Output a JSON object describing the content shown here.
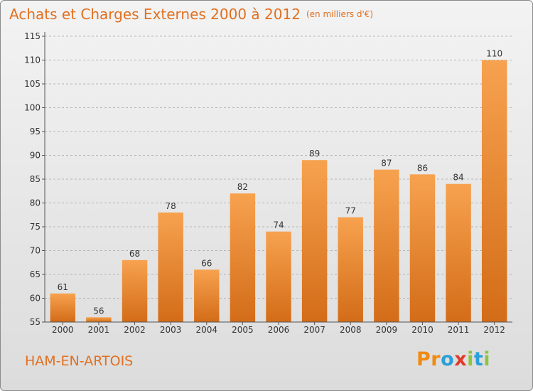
{
  "header": {
    "title": "Achats et Charges Externes 2000 à 2012",
    "unit": "(en milliers d'€)"
  },
  "footer": {
    "commune": "HAM-EN-ARTOIS",
    "logo": {
      "letters": [
        "P",
        "r",
        "o",
        "x",
        "i",
        "t",
        "i"
      ],
      "colors": [
        "#f08a10",
        "#f08a10",
        "#2a9fd8",
        "#e03a2a",
        "#8cc63e",
        "#2a9fd8",
        "#8cc63e"
      ]
    }
  },
  "colors": {
    "accent": "#e07020",
    "bar_light": "#f7a24f",
    "bar_dark": "#d36c18",
    "grid": "#b5b5b5"
  },
  "chart_data": {
    "type": "bar",
    "title": "Achats et Charges Externes 2000 à 2012",
    "categories": [
      "2000",
      "2001",
      "2002",
      "2003",
      "2004",
      "2005",
      "2006",
      "2007",
      "2008",
      "2009",
      "2010",
      "2011",
      "2012"
    ],
    "values": [
      61,
      56,
      68,
      78,
      66,
      82,
      74,
      89,
      77,
      87,
      86,
      84,
      110
    ],
    "ylim": [
      55,
      115
    ],
    "yticks": [
      55,
      60,
      65,
      70,
      75,
      80,
      85,
      90,
      95,
      100,
      105,
      110,
      115
    ],
    "grid": true,
    "data_labels": true
  }
}
